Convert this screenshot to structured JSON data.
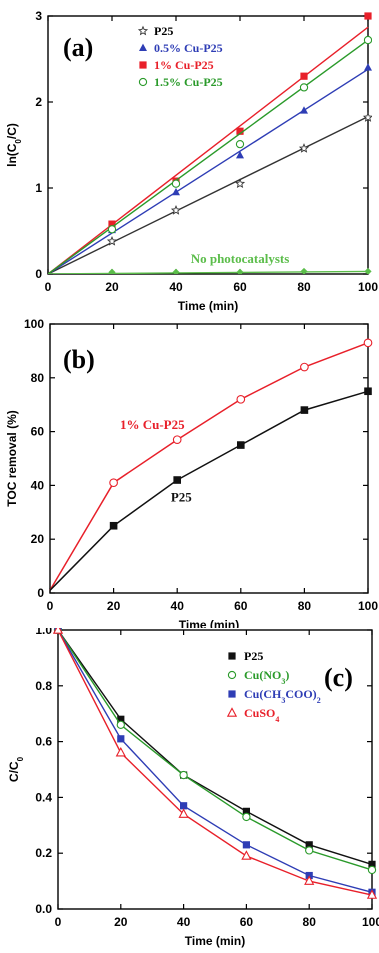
{
  "chart_data": [
    {
      "type": "scatter",
      "panel_label": "(a)",
      "xlabel": "Time (min)",
      "ylabel": "ln(C0/C)",
      "xlim": [
        0,
        100
      ],
      "ylim": [
        0,
        3
      ],
      "xticks": [
        0,
        20,
        40,
        60,
        80,
        100
      ],
      "yticks": [
        0,
        1,
        2,
        3
      ],
      "legend_position": "top-left",
      "series": [
        {
          "name": "P25",
          "color": "#333333",
          "marker": "star",
          "x": [
            0,
            20,
            40,
            60,
            80,
            100
          ],
          "y": [
            0,
            0.38,
            0.74,
            1.05,
            1.46,
            1.82
          ],
          "fit": [
            0,
            1.83
          ]
        },
        {
          "name": "0.5% Cu-P25",
          "color": "#2e3db5",
          "marker": "triangle",
          "x": [
            0,
            20,
            40,
            60,
            80,
            100
          ],
          "y": [
            0,
            0.51,
            0.95,
            1.38,
            1.9,
            2.4
          ],
          "fit": [
            0,
            2.38
          ]
        },
        {
          "name": "1% Cu-P25",
          "color": "#e8202a",
          "marker": "square",
          "x": [
            0,
            20,
            40,
            60,
            80,
            100
          ],
          "y": [
            0,
            0.58,
            1.08,
            1.66,
            2.3,
            3.0
          ],
          "fit": [
            0,
            2.87
          ]
        },
        {
          "name": "1.5% Cu-P25",
          "color": "#2a9a2a",
          "marker": "circle-open",
          "x": [
            0,
            20,
            40,
            60,
            80,
            100
          ],
          "y": [
            0,
            0.52,
            1.05,
            1.51,
            2.17,
            2.72
          ],
          "fit": [
            0,
            2.72
          ]
        },
        {
          "name": "No photocatalysts",
          "color": "#5bbd4a",
          "marker": "diamond",
          "x": [
            0,
            20,
            40,
            60,
            80,
            100
          ],
          "y": [
            0,
            0.02,
            0.02,
            0.02,
            0.03,
            0.03
          ],
          "fit": [
            0,
            0.03
          ]
        }
      ],
      "annotation": {
        "text": "No photocatalysts",
        "x": 60,
        "y": 0.13,
        "color": "#5bbd4a"
      }
    },
    {
      "type": "line",
      "panel_label": "(b)",
      "xlabel": "Time (min)",
      "ylabel": "TOC removal (%)",
      "xlim": [
        0,
        100
      ],
      "ylim": [
        0,
        100
      ],
      "xticks": [
        0,
        20,
        40,
        60,
        80,
        100
      ],
      "yticks": [
        0,
        20,
        40,
        60,
        80,
        100
      ],
      "series": [
        {
          "name": "1% Cu-P25",
          "color": "#e8202a",
          "marker": "circle-open",
          "x": [
            0,
            20,
            40,
            60,
            80,
            100
          ],
          "y": [
            1,
            41,
            57,
            72,
            84,
            93
          ]
        },
        {
          "name": "P25",
          "color": "#111111",
          "marker": "square",
          "x": [
            0,
            20,
            40,
            60,
            80,
            100
          ],
          "y": [
            1,
            25,
            42,
            55,
            68,
            75
          ]
        }
      ],
      "annotations": [
        {
          "text": "1% Cu-P25",
          "x": 22,
          "y": 61,
          "color": "#e8202a"
        },
        {
          "text": "P25",
          "x": 38,
          "y": 34,
          "color": "#111111"
        }
      ]
    },
    {
      "type": "line",
      "panel_label": "(c)",
      "xlabel": "Time (min)",
      "ylabel": "C/C0",
      "xlim": [
        0,
        100
      ],
      "ylim": [
        0,
        1.0
      ],
      "xticks": [
        0,
        20,
        40,
        60,
        80,
        100
      ],
      "yticks": [
        0.0,
        0.2,
        0.4,
        0.6,
        0.8,
        1.0
      ],
      "legend_position": "top-right",
      "series": [
        {
          "name": "P25",
          "color": "#111111",
          "marker": "square",
          "x": [
            0,
            20,
            40,
            60,
            80,
            100
          ],
          "y": [
            1.0,
            0.68,
            0.48,
            0.35,
            0.23,
            0.16
          ]
        },
        {
          "name": "Cu(NO3)",
          "color": "#2a9a2a",
          "marker": "circle-open",
          "x": [
            0,
            20,
            40,
            60,
            80,
            100
          ],
          "y": [
            1.0,
            0.66,
            0.48,
            0.33,
            0.21,
            0.14
          ]
        },
        {
          "name": "Cu(CH3COO)2",
          "color": "#2e3db5",
          "marker": "square",
          "x": [
            0,
            20,
            40,
            60,
            80,
            100
          ],
          "y": [
            1.0,
            0.61,
            0.37,
            0.23,
            0.12,
            0.06
          ]
        },
        {
          "name": "CuSO4",
          "color": "#e8202a",
          "marker": "triangle-open",
          "x": [
            0,
            20,
            40,
            60,
            80,
            100
          ],
          "y": [
            1.0,
            0.56,
            0.34,
            0.19,
            0.1,
            0.05
          ]
        }
      ]
    }
  ]
}
